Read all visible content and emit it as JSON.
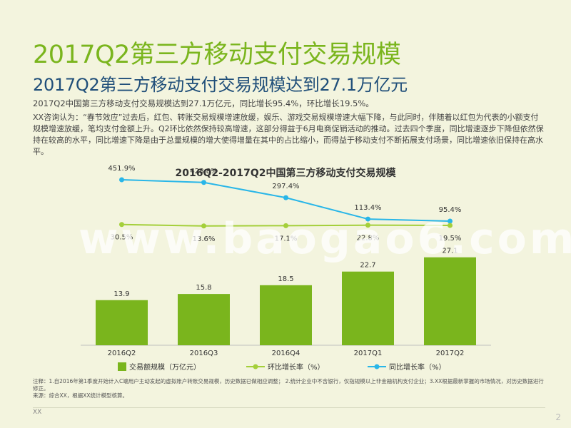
{
  "header": {
    "title": "2017Q2第三方移动支付交易规模",
    "subtitle": "2017Q2第三方移动支付交易规模达到27.1万亿元"
  },
  "summary": "2017Q2中国第三方移动支付交易规模达到27.1万亿元，同比增长95.4%，环比增长19.5%。",
  "analysis": "XX咨询认为：“春节效应”过去后，红包、转账交易规模增速放缓，娱乐、游戏交易规模增速大幅下降，与此同时，伴随着以红包为代表的小额支付规模增速放缓，笔均支付金额上升。Q2环比依然保持较高增速，这部分得益于6月电商促销活动的推动。过去四个季度，同比增速逐步下降但依然保持在较高的水平，同比增速下降是由于总量规模的增大使得增量在其中的占比缩小，而得益于移动支付不断拓展支付场景，同比增速依旧保持在高水平。",
  "watermark": "www.baogao6.com",
  "chart_data": {
    "type": "bar",
    "title": "2016Q2-2017Q2中国第三方移动支付交易规模",
    "categories": [
      "2016Q2",
      "2016Q3",
      "2016Q4",
      "2017Q1",
      "2017Q2"
    ],
    "series": [
      {
        "name": "交易额规模（万亿元）",
        "type": "bar",
        "values": [
          13.9,
          15.8,
          18.5,
          22.7,
          27.1
        ],
        "labels": [
          "13.9",
          "15.8",
          "18.5",
          "22.7",
          "27.1"
        ],
        "color": "#7ab51d"
      },
      {
        "name": "环比增长率（%）",
        "type": "line",
        "values": [
          30.5,
          13.6,
          17.1,
          22.8,
          19.5
        ],
        "labels": [
          "30.5%",
          "13.6%",
          "17.1%",
          "22.8%",
          "19.5%"
        ],
        "color": "#a4cf3a"
      },
      {
        "name": "同比增长率（%）",
        "type": "line",
        "values": [
          451.9,
          428.8,
          297.4,
          113.4,
          95.4
        ],
        "labels": [
          "451.9%",
          "428.8%",
          "297.4%",
          "113.4%",
          "95.4%"
        ],
        "color": "#29b6e8"
      }
    ],
    "legend_position": "bottom",
    "grid": false
  },
  "notes": [
    "注释：1.自2016年第1季度开始计入C端用户主动发起的虚拟账户转账交易规模，历史数据已做相应调整； 2.统计企业中不含银行，仅指规模以上非金融机构支付企业；3.XX根据最新掌握的市场情况，对历史数据进行修正。",
    "来源：综合XX，根据XX统计模型核算。"
  ],
  "footer": {
    "source": "XX",
    "page": "2"
  }
}
